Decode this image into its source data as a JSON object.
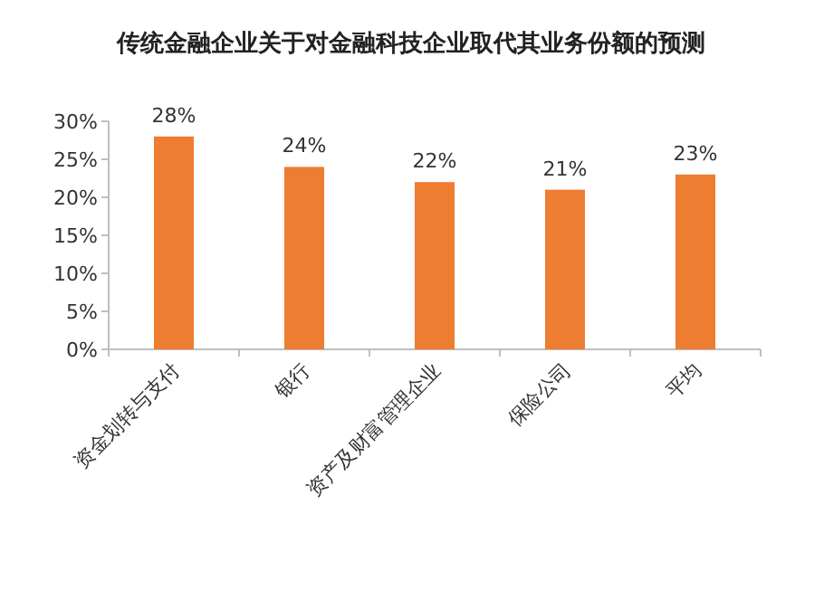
{
  "chart_data": {
    "type": "bar",
    "title": "传统金融企业关于对金融科技企业取代其业务份额的预测",
    "categories": [
      "资金划转与支付",
      "银行",
      "资产及财富管理企业",
      "保险公司",
      "平均"
    ],
    "values": [
      28,
      24,
      22,
      21,
      23
    ],
    "value_labels": [
      "28%",
      "24%",
      "22%",
      "21%",
      "23%"
    ],
    "color": "#ed7d31",
    "ylim": [
      0,
      30
    ],
    "yticks": [
      {
        "value": 0,
        "label": "0%"
      },
      {
        "value": 5,
        "label": "5%"
      },
      {
        "value": 10,
        "label": "10%"
      },
      {
        "value": 15,
        "label": "15%"
      },
      {
        "value": 20,
        "label": "20%"
      },
      {
        "value": 25,
        "label": "25%"
      },
      {
        "value": 30,
        "label": "30%"
      }
    ],
    "grid": false
  }
}
